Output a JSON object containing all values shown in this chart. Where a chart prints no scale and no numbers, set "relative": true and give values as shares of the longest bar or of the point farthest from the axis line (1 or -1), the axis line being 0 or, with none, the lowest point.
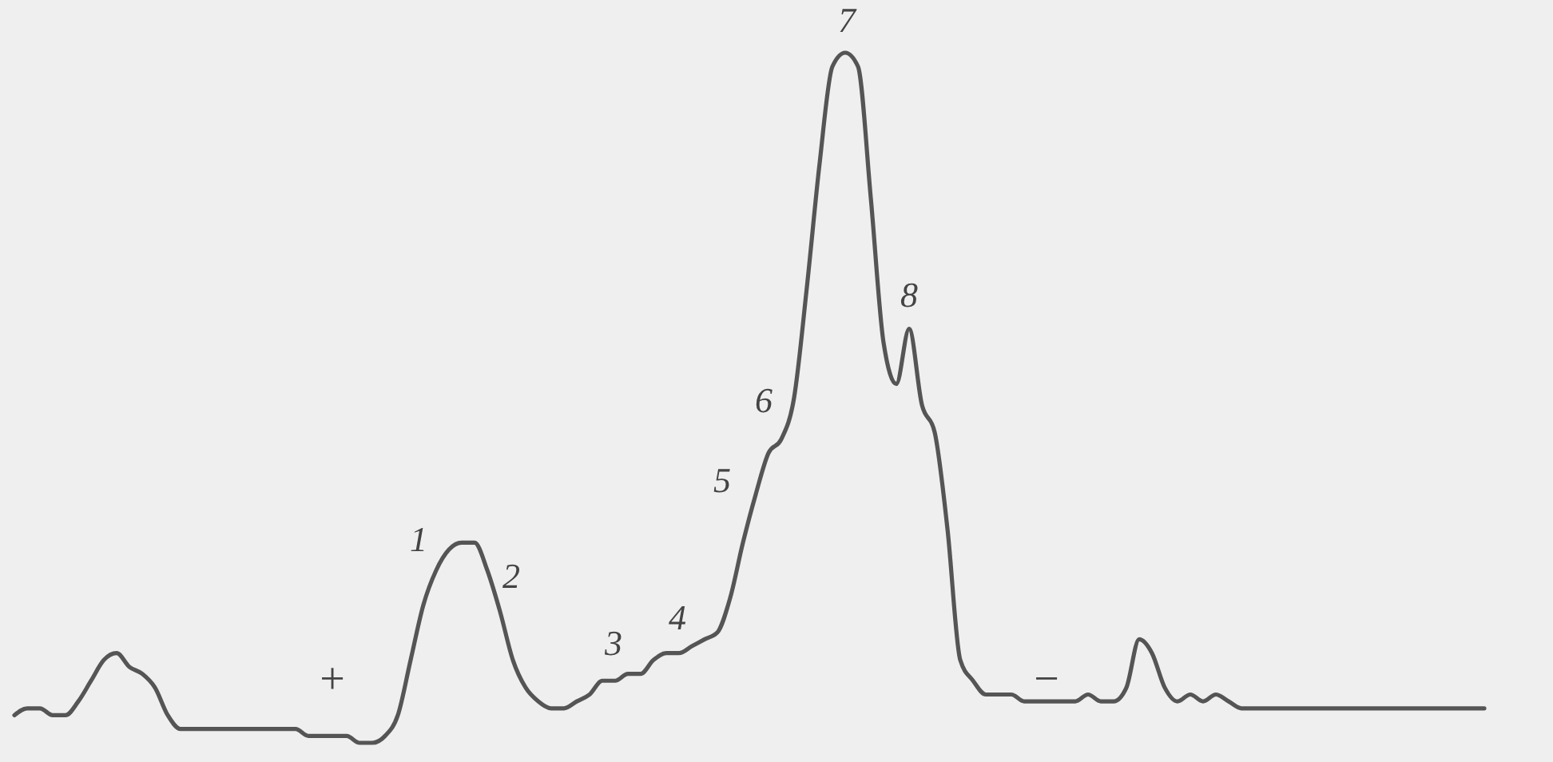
{
  "chart_data": {
    "type": "line",
    "relative": true,
    "categories": [
      null,
      null,
      null,
      null,
      null,
      null,
      null,
      null,
      null,
      null,
      null,
      null,
      null,
      null,
      null,
      null,
      null,
      null,
      null,
      null,
      null,
      null,
      null,
      null,
      null,
      null,
      null,
      null,
      null,
      null,
      null,
      null,
      null,
      null,
      null,
      null,
      null,
      null,
      null,
      null,
      null,
      null,
      null,
      null,
      null,
      null,
      null,
      null,
      null,
      null,
      null,
      null,
      null,
      null,
      null,
      null,
      null,
      null,
      null,
      null,
      null,
      null,
      null,
      null,
      null,
      null,
      null,
      null,
      null,
      null,
      null,
      null,
      null,
      null,
      null,
      null,
      null,
      null,
      null,
      null,
      null,
      null,
      null,
      null,
      null,
      null,
      null,
      null,
      null,
      null,
      null,
      null,
      null,
      null,
      null,
      null,
      null,
      null,
      null,
      null,
      null,
      null,
      null,
      null,
      null,
      null,
      null,
      null,
      null,
      null,
      null,
      null,
      null,
      null,
      null,
      null
    ],
    "series": [
      {
        "color": "#555555",
        "values": [
          0.04,
          0.05,
          0.05,
          0.04,
          0.04,
          0.06,
          0.09,
          0.12,
          0.13,
          0.11,
          0.1,
          0.08,
          0.04,
          0.02,
          0.02,
          0.02,
          0.02,
          0.02,
          0.02,
          0.02,
          0.02,
          0.02,
          0.02,
          0.01,
          0.01,
          0.01,
          0.01,
          0,
          0,
          0.01,
          0.04,
          0.12,
          0.2,
          0.25,
          0.28,
          0.29,
          0.29,
          0.25,
          0.19,
          0.12,
          0.08,
          0.06,
          0.05,
          0.05,
          0.06,
          0.07,
          0.09,
          0.09,
          0.1,
          0.1,
          0.12,
          0.13,
          0.13,
          0.14,
          0.15,
          0.16,
          0.21,
          0.29,
          0.36,
          0.42,
          0.44,
          0.5,
          0.66,
          0.84,
          0.98,
          1,
          0.98,
          0.79,
          0.58,
          0.52,
          0.6,
          0.49,
          0.45,
          0.31,
          0.12,
          0.09,
          0.07,
          0.07,
          0.07,
          0.06,
          0.06,
          0.06,
          0.06,
          0.06,
          0.07,
          0.06,
          0.06,
          0.08,
          0.15,
          0.13,
          0.08,
          0.06,
          0.07,
          0.06,
          0.07,
          0.06,
          0.05,
          0.05,
          0.05,
          0.05,
          0.05,
          0.05,
          0.05,
          0.05,
          0.05,
          0.05,
          0.05,
          0.05,
          0.05,
          0.05,
          0.05,
          0.05,
          0.05,
          0.05,
          0.05,
          0.05
        ]
      }
    ],
    "annotations": [
      "1",
      "2",
      "3",
      "4",
      "5",
      "6",
      "7",
      "8",
      "+",
      "−"
    ]
  }
}
